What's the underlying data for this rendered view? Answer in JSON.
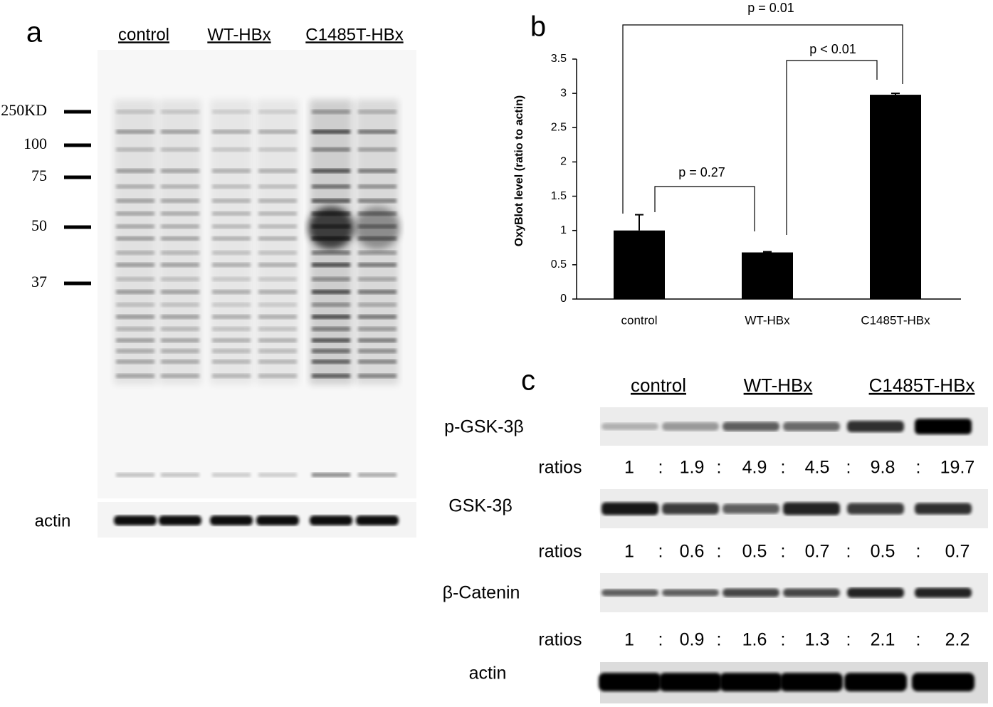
{
  "panel_a": {
    "label": "a",
    "groups": [
      "control",
      "WT-HBx",
      "C1485T-HBx"
    ],
    "markers": [
      "250KD",
      "100",
      "75",
      "50",
      "37"
    ],
    "actin_label": "actin"
  },
  "chart_data": {
    "type": "bar",
    "panel_label": "b",
    "y_label": "OxyBlot level (ratio to actin)",
    "categories": [
      "control",
      "WT-HBx",
      "C1485T-HBx"
    ],
    "values": [
      1,
      0.68,
      2.98
    ],
    "errors": [
      0.23,
      0.01,
      0.02
    ],
    "color": "#000000",
    "ylim": [
      0,
      3.5
    ],
    "yticks": [
      0,
      0.5,
      1,
      1.5,
      2,
      2.5,
      3,
      3.5
    ],
    "annotations": [
      "p = 0.27",
      "p < 0.01",
      "p = 0.01"
    ]
  },
  "panel_c": {
    "label": "c",
    "groups": [
      "control",
      "WT-HBx",
      "C1485T-HBx"
    ],
    "separator": ":",
    "rows": [
      {
        "label": "p-GSK-3β",
        "ratios_label": "ratios",
        "ratios": [
          "1",
          "1.9",
          "4.9",
          "4.5",
          "9.8",
          "19.7"
        ]
      },
      {
        "label": "GSK-3β",
        "ratios_label": "ratios",
        "ratios": [
          "1",
          "0.6",
          "0.5",
          "0.7",
          "0.5",
          "0.7"
        ]
      },
      {
        "label": "β-Catenin",
        "ratios_label": "ratios",
        "ratios": [
          "1",
          "0.9",
          "1.6",
          "1.3",
          "2.1",
          "2.2"
        ]
      }
    ],
    "actin_label": "actin"
  }
}
